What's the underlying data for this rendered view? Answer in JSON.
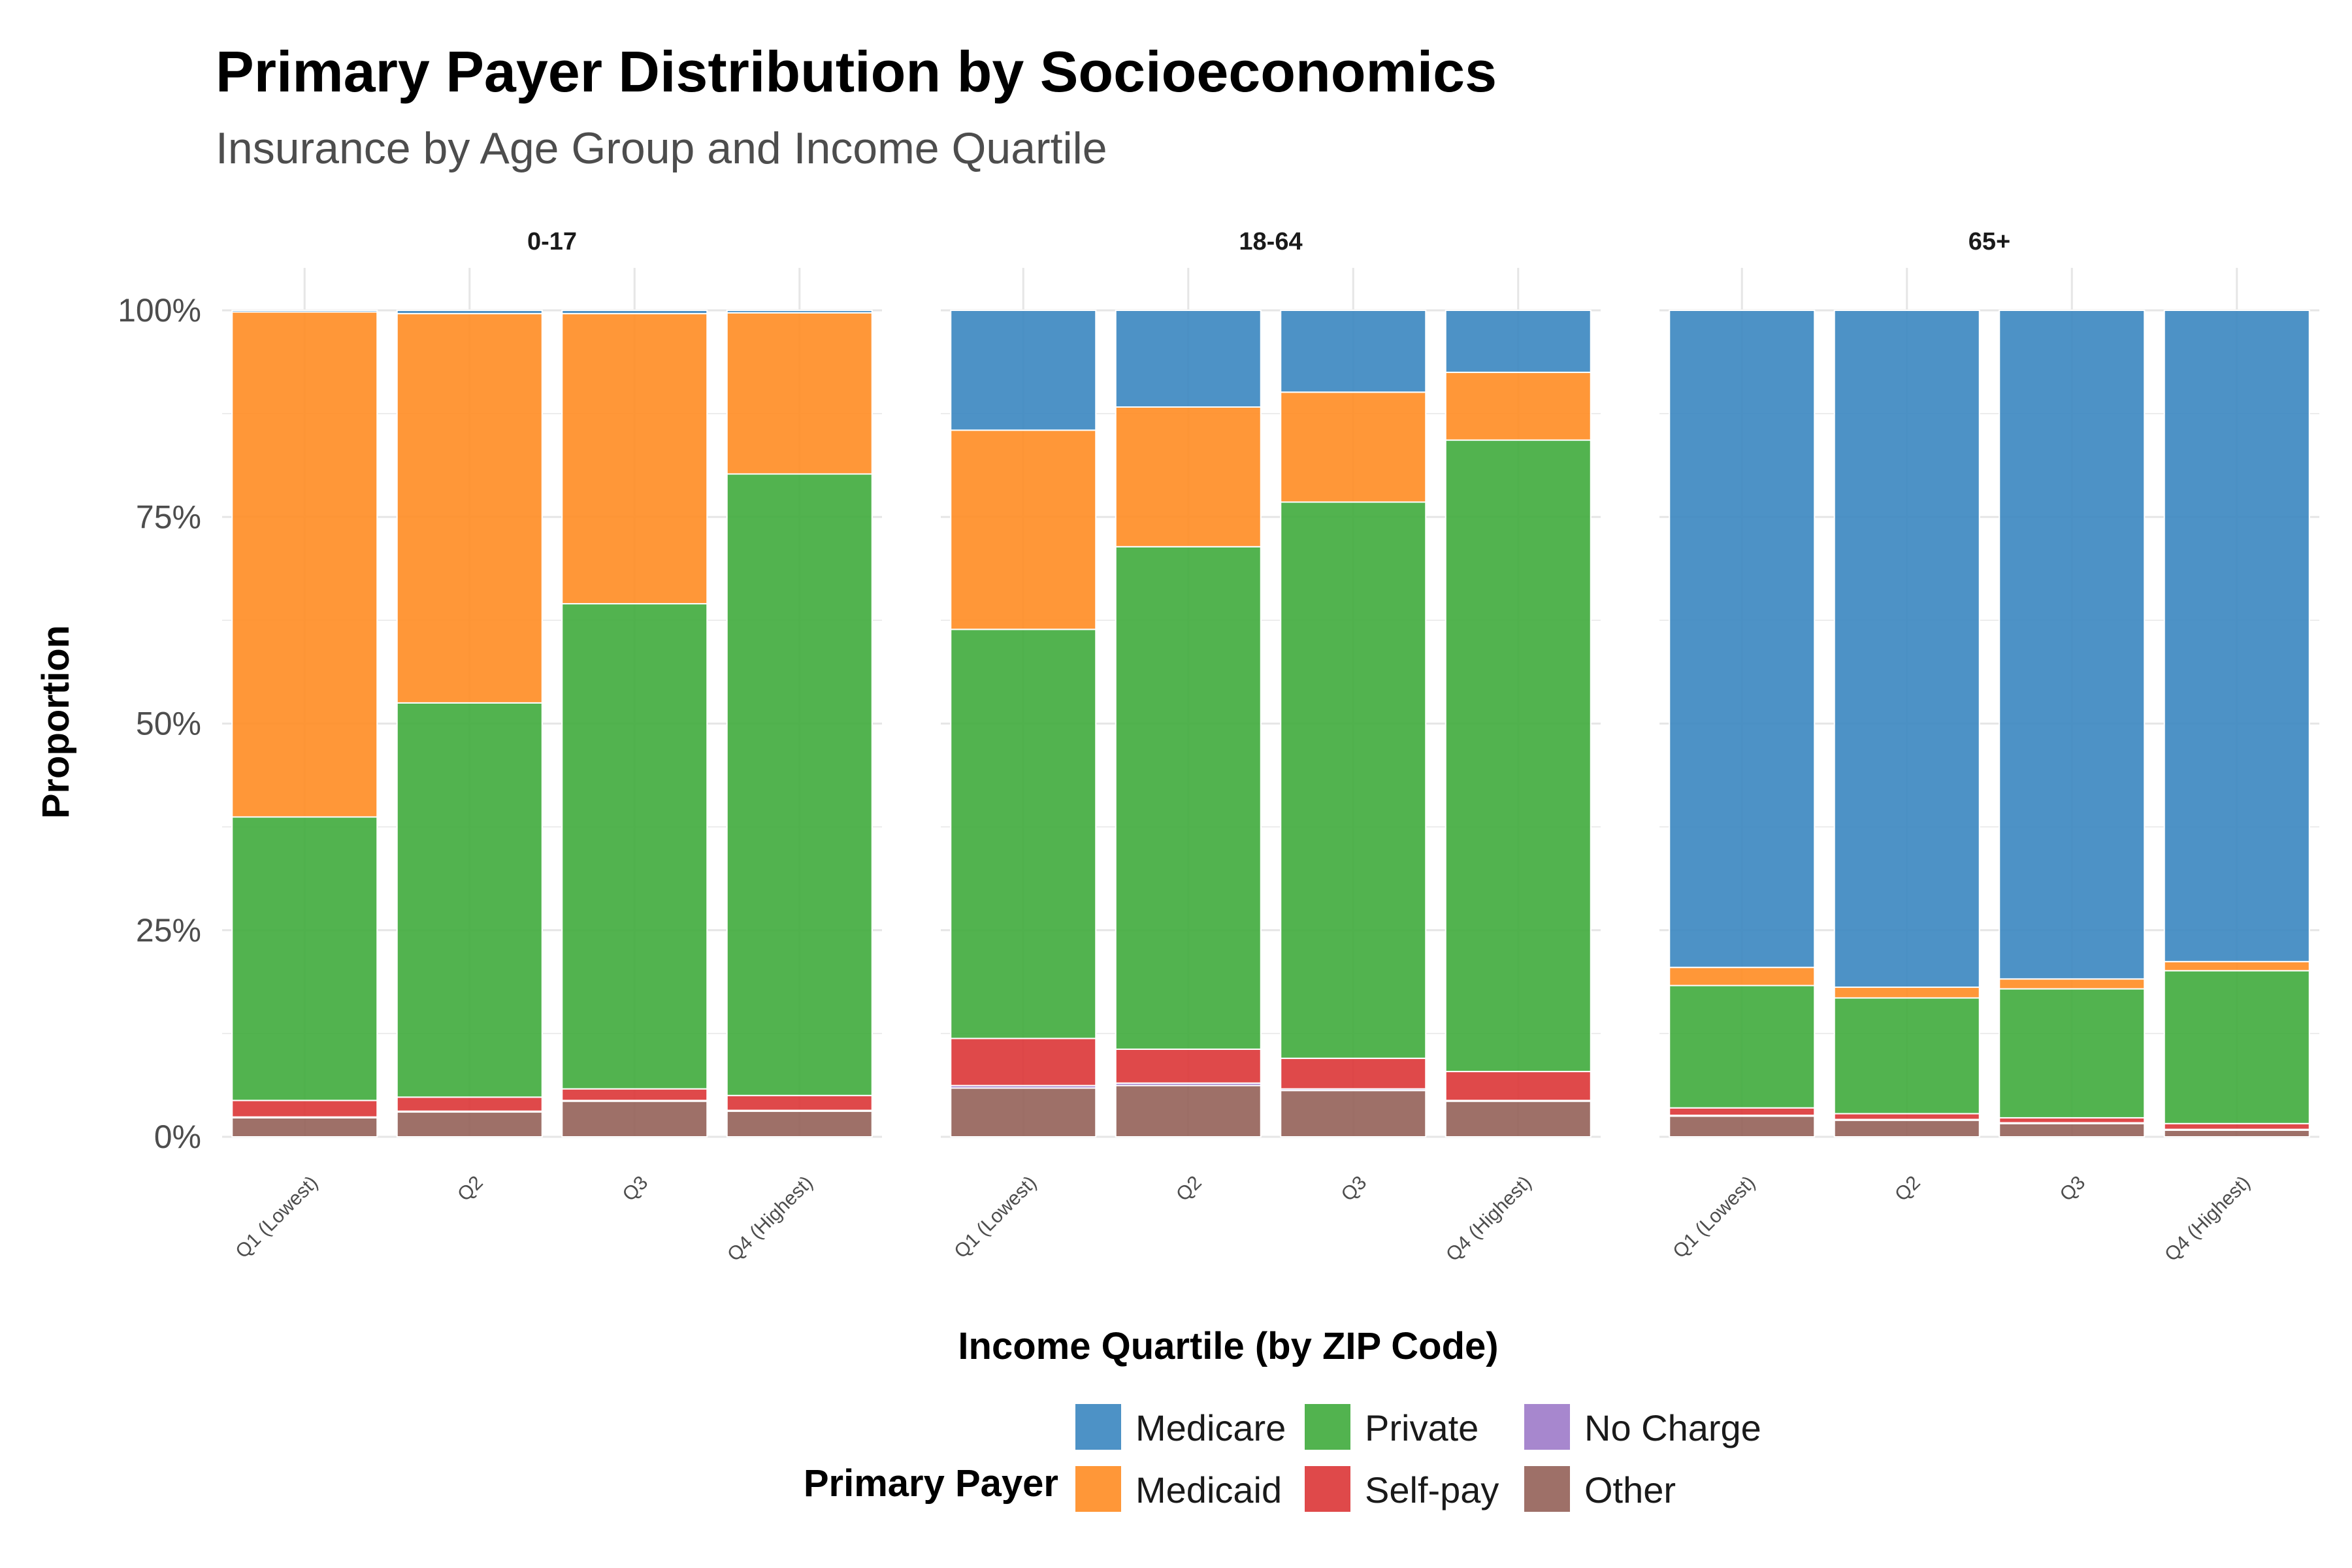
{
  "chart_data": {
    "type": "bar",
    "stacked": true,
    "title": "Primary Payer Distribution by Socioeconomics",
    "subtitle": "Insurance by Age Group and Income Quartile",
    "xlabel": "Income Quartile (by ZIP Code)",
    "ylabel": "Proportion",
    "ylim": [
      0,
      1
    ],
    "yticks": [
      "0%",
      "25%",
      "50%",
      "75%",
      "100%"
    ],
    "grid": true,
    "legend_title": "Primary Payer",
    "legend_position": "bottom",
    "categories": [
      "Q1 (Lowest)",
      "Q2",
      "Q3",
      "Q4 (Highest)"
    ],
    "series_colors": {
      "Medicare": "#3a86c0",
      "Medicaid": "#ff8c22",
      "Private": "#3fab3c",
      "Self-pay": "#db3536",
      "No Charge": "#9d7ac9",
      "Other": "#936158"
    },
    "legend_order": [
      "Medicare",
      "Medicaid",
      "Private",
      "Self-pay",
      "No Charge",
      "Other"
    ],
    "stack_order_bottom_to_top": [
      "Other",
      "No Charge",
      "Self-pay",
      "Private",
      "Medicaid",
      "Medicare"
    ],
    "panels": [
      {
        "label": "0-17",
        "series": [
          {
            "name": "Other",
            "values": [
              0.023,
              0.03,
              0.043,
              0.031
            ]
          },
          {
            "name": "No Charge",
            "values": [
              0.001,
              0.001,
              0.001,
              0.001
            ]
          },
          {
            "name": "Self-pay",
            "values": [
              0.02,
              0.017,
              0.014,
              0.018
            ]
          },
          {
            "name": "Private",
            "values": [
              0.343,
              0.477,
              0.587,
              0.752
            ]
          },
          {
            "name": "Medicaid",
            "values": [
              0.611,
              0.471,
              0.351,
              0.195
            ]
          },
          {
            "name": "Medicare",
            "values": [
              0.002,
              0.004,
              0.004,
              0.003
            ]
          }
        ]
      },
      {
        "label": "18-64",
        "series": [
          {
            "name": "Other",
            "values": [
              0.059,
              0.062,
              0.056,
              0.043
            ]
          },
          {
            "name": "No Charge",
            "values": [
              0.003,
              0.003,
              0.002,
              0.001
            ]
          },
          {
            "name": "Self-pay",
            "values": [
              0.057,
              0.041,
              0.037,
              0.035
            ]
          },
          {
            "name": "Private",
            "values": [
              0.495,
              0.608,
              0.673,
              0.764
            ]
          },
          {
            "name": "Medicaid",
            "values": [
              0.241,
              0.169,
              0.133,
              0.082
            ]
          },
          {
            "name": "Medicare",
            "values": [
              0.145,
              0.117,
              0.099,
              0.075
            ]
          }
        ]
      },
      {
        "label": "65+",
        "series": [
          {
            "name": "Other",
            "values": [
              0.025,
              0.02,
              0.016,
              0.008
            ]
          },
          {
            "name": "No Charge",
            "values": [
              0.001,
              0.001,
              0.001,
              0.001
            ]
          },
          {
            "name": "Self-pay",
            "values": [
              0.009,
              0.007,
              0.006,
              0.007
            ]
          },
          {
            "name": "Private",
            "values": [
              0.148,
              0.14,
              0.156,
              0.185
            ]
          },
          {
            "name": "Medicaid",
            "values": [
              0.022,
              0.013,
              0.012,
              0.011
            ]
          },
          {
            "name": "Medicare",
            "values": [
              0.795,
              0.819,
              0.809,
              0.788
            ]
          }
        ]
      }
    ]
  }
}
